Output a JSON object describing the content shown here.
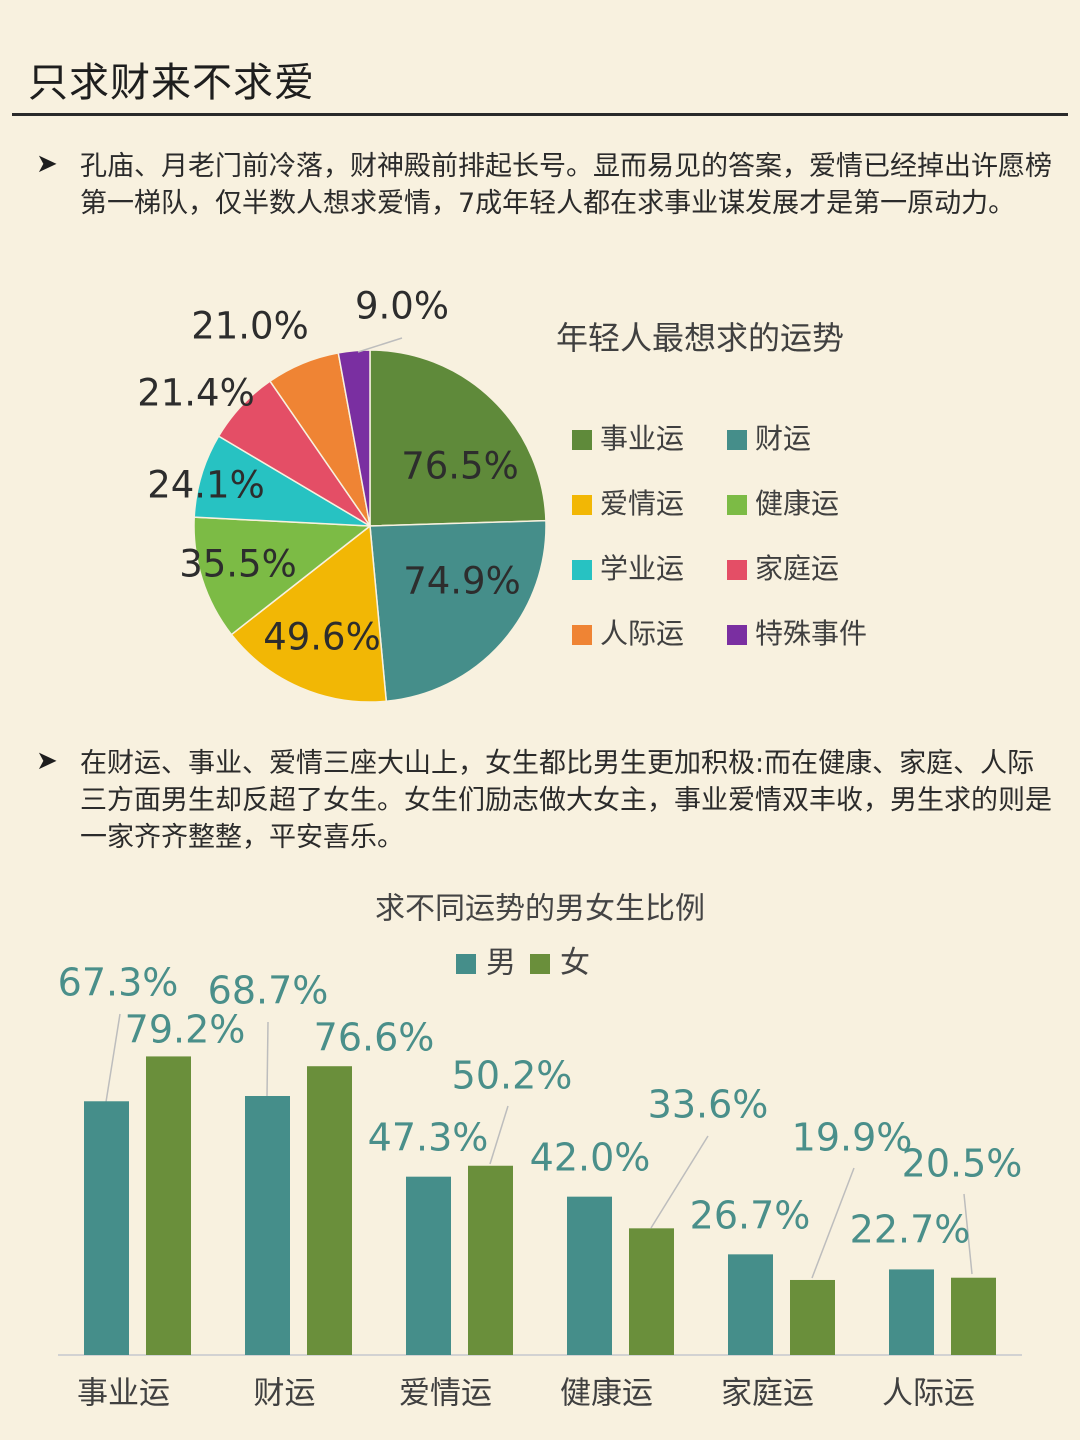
{
  "page": {
    "title": "只求财来不求爱",
    "bullet_glyph": "➤",
    "paragraph1": "孔庙、月老门前冷落，财神殿前排起长号。显而易见的答案，爱情已经掉出许愿榜第一梯队，仅半数人想求爱情，7成年轻人都在求事业谋发展才是第一原动力。",
    "paragraph2": "在财运、事业、爱情三座大山上，女生都比男生更加积极:而在健康、家庭、人际三方面男生却反超了女生。女生们励志做大女主，事业爱情双丰收，男生求的则是一家齐齐整整，平安喜乐。"
  },
  "chart_data": [
    {
      "type": "pie",
      "title": "年轻人最想求的运势",
      "legend_position": "right",
      "slices": [
        {
          "label": "事业运",
          "value": 76.5,
          "display": "76.5%",
          "color": "#5f8a3a"
        },
        {
          "label": "财运",
          "value": 74.9,
          "display": "74.9%",
          "color": "#458e8a"
        },
        {
          "label": "爱情运",
          "value": 49.6,
          "display": "49.6%",
          "color": "#f2b705"
        },
        {
          "label": "健康运",
          "value": 35.5,
          "display": "35.5%",
          "color": "#7cbb45"
        },
        {
          "label": "学业运",
          "value": 24.1,
          "display": "24.1%",
          "color": "#27c2c2"
        },
        {
          "label": "家庭运",
          "value": 21.4,
          "display": "21.4%",
          "color": "#e44e66"
        },
        {
          "label": "人际运",
          "value": 21.0,
          "display": "21.0%",
          "color": "#ef8434"
        },
        {
          "label": "特殊事件",
          "value": 9.0,
          "display": "9.0%",
          "color": "#7a2fa1"
        }
      ]
    },
    {
      "type": "bar",
      "title": "求不同运势的男女生比例",
      "legend_position": "top",
      "categories": [
        "事业运",
        "财运",
        "爱情运",
        "健康运",
        "家庭运",
        "人际运"
      ],
      "series": [
        {
          "name": "男",
          "color": "#458e8a",
          "values": [
            67.3,
            68.7,
            47.3,
            42.0,
            26.7,
            22.7
          ],
          "labels": [
            "67.3%",
            "68.7%",
            "47.3%",
            "42.0%",
            "26.7%",
            "22.7%"
          ]
        },
        {
          "name": "女",
          "color": "#6a8f3b",
          "values": [
            79.2,
            76.6,
            50.2,
            33.6,
            19.9,
            20.5
          ],
          "labels": [
            "79.2%",
            "76.6%",
            "50.2%",
            "33.6%",
            "19.9%",
            "20.5%"
          ]
        }
      ],
      "grid": false
    }
  ]
}
